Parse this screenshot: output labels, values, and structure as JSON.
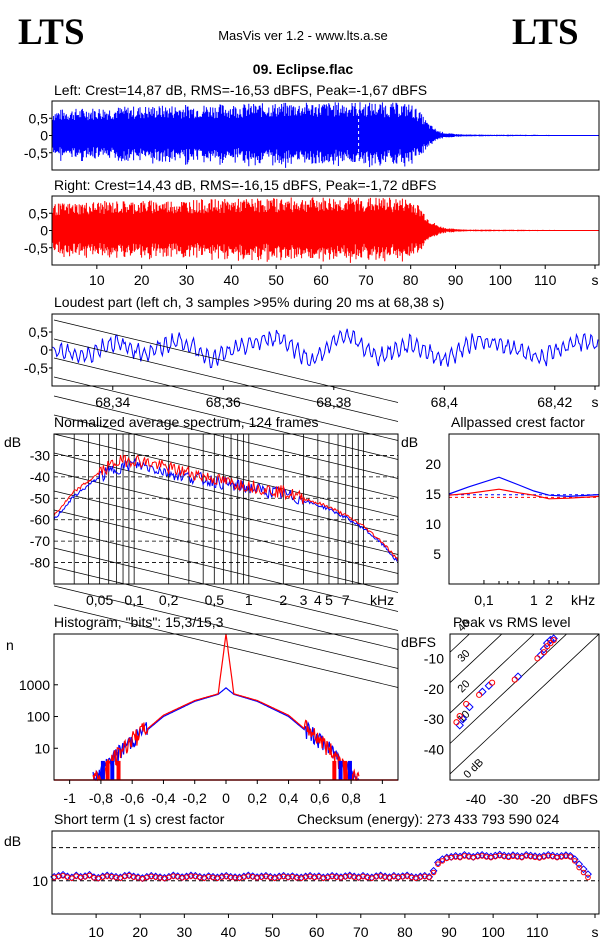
{
  "header": {
    "logo_left": "LTS",
    "logo_right": "LTS",
    "app_info": "MasVis ver 1.2 - www.lts.a.se",
    "track_title": "09. Eclipse.flac"
  },
  "colors": {
    "left": "#0000ff",
    "right": "#ff0000",
    "grid": "#000000"
  },
  "chart_data": [
    {
      "id": "left_waveform",
      "type": "area",
      "title": "Left: Crest=14,87 dB, RMS=-16,53 dBFS, Peak=-1,67 dBFS",
      "y_ticks": [
        "0,5",
        "0",
        "-0,5"
      ],
      "ylim": [
        -1,
        1
      ],
      "xlim": [
        0,
        122
      ],
      "envelope": [
        [
          0,
          0.75
        ],
        [
          10,
          0.82
        ],
        [
          20,
          0.86
        ],
        [
          30,
          0.9
        ],
        [
          40,
          0.92
        ],
        [
          50,
          0.95
        ],
        [
          60,
          0.97
        ],
        [
          68,
          0.98
        ],
        [
          75,
          0.96
        ],
        [
          80,
          0.94
        ],
        [
          82,
          0.7
        ],
        [
          84,
          0.35
        ],
        [
          86,
          0.15
        ],
        [
          88,
          0.07
        ],
        [
          92,
          0.03
        ],
        [
          122,
          0.01
        ]
      ],
      "marker_x": 68.38
    },
    {
      "id": "right_waveform",
      "type": "area",
      "title": "Right: Crest=14,43 dB, RMS=-16,15 dBFS, Peak=-1,72 dBFS",
      "y_ticks": [
        "0,5",
        "0",
        "-0,5"
      ],
      "ylim": [
        -1,
        1
      ],
      "xlim": [
        0,
        122
      ],
      "x_ticks": [
        "10",
        "20",
        "30",
        "40",
        "50",
        "60",
        "70",
        "80",
        "90",
        "100",
        "110",
        "s"
      ],
      "envelope": [
        [
          0,
          0.78
        ],
        [
          10,
          0.85
        ],
        [
          20,
          0.88
        ],
        [
          30,
          0.9
        ],
        [
          40,
          0.92
        ],
        [
          50,
          0.95
        ],
        [
          60,
          0.97
        ],
        [
          68,
          0.97
        ],
        [
          75,
          0.96
        ],
        [
          80,
          0.94
        ],
        [
          82,
          0.72
        ],
        [
          84,
          0.35
        ],
        [
          86,
          0.15
        ],
        [
          88,
          0.07
        ],
        [
          92,
          0.03
        ],
        [
          122,
          0.01
        ]
      ]
    },
    {
      "id": "loudest_part",
      "type": "line",
      "title": "Loudest part (left  ch, 3 samples >95% during 20 ms at 68,38 s)",
      "y_ticks": [
        "0,5",
        "0",
        "-0,5"
      ],
      "ylim": [
        -1,
        1
      ],
      "xlim": [
        68.329,
        68.428
      ],
      "x_ticks": [
        "68,34",
        "68,36",
        "68,38",
        "68,4",
        "68,42",
        "s"
      ],
      "x_tick_values": [
        68.34,
        68.36,
        68.38,
        68.4,
        68.42
      ],
      "wave": [
        [
          68.329,
          0.02
        ],
        [
          68.335,
          -0.18
        ],
        [
          68.34,
          0.22
        ],
        [
          68.346,
          -0.1
        ],
        [
          68.352,
          0.28
        ],
        [
          68.358,
          -0.25
        ],
        [
          68.364,
          0.12
        ],
        [
          68.37,
          0.38
        ],
        [
          68.376,
          -0.32
        ],
        [
          68.382,
          0.45
        ],
        [
          68.388,
          -0.2
        ],
        [
          68.394,
          0.18
        ],
        [
          68.4,
          -0.28
        ],
        [
          68.406,
          0.3
        ],
        [
          68.412,
          0.05
        ],
        [
          68.418,
          -0.22
        ],
        [
          68.424,
          0.26
        ],
        [
          68.428,
          0.1
        ]
      ]
    },
    {
      "id": "avg_spectrum",
      "type": "line",
      "title": "Normalized average spectrum, 124 frames",
      "ylabel": "dB",
      "xlabel": "kHz",
      "y_ticks": [
        "-30",
        "-40",
        "-50",
        "-60",
        "-70",
        "-80"
      ],
      "y_tick_values": [
        -30,
        -40,
        -50,
        -60,
        -70,
        -80
      ],
      "ylim": [
        -90,
        -20
      ],
      "xlim_khz": [
        0.02,
        20
      ],
      "x_ticks": [
        "0,05",
        "0,1",
        "0,2",
        "0,5",
        "1",
        "2",
        "3",
        "4",
        "5",
        "7"
      ],
      "x_tick_values": [
        0.05,
        0.1,
        0.2,
        0.5,
        1,
        2,
        3,
        4,
        5,
        7
      ],
      "series": [
        {
          "name": "left",
          "points": [
            [
              0.02,
              -60
            ],
            [
              0.03,
              -49
            ],
            [
              0.05,
              -40
            ],
            [
              0.07,
              -36
            ],
            [
              0.1,
              -34
            ],
            [
              0.15,
              -36
            ],
            [
              0.2,
              -38
            ],
            [
              0.3,
              -40
            ],
            [
              0.5,
              -42
            ],
            [
              0.7,
              -44
            ],
            [
              1,
              -45
            ],
            [
              1.5,
              -47
            ],
            [
              2,
              -48
            ],
            [
              3,
              -51
            ],
            [
              5,
              -55
            ],
            [
              7,
              -59
            ],
            [
              10,
              -64
            ],
            [
              15,
              -72
            ],
            [
              20,
              -80
            ]
          ]
        },
        {
          "name": "right",
          "points": [
            [
              0.02,
              -58
            ],
            [
              0.03,
              -47
            ],
            [
              0.05,
              -38
            ],
            [
              0.07,
              -33
            ],
            [
              0.1,
              -32
            ],
            [
              0.15,
              -34
            ],
            [
              0.2,
              -36
            ],
            [
              0.3,
              -38
            ],
            [
              0.5,
              -41
            ],
            [
              0.7,
              -43
            ],
            [
              1,
              -44
            ],
            [
              1.5,
              -46
            ],
            [
              2,
              -47
            ],
            [
              3,
              -50
            ],
            [
              5,
              -54
            ],
            [
              7,
              -58
            ],
            [
              10,
              -63
            ],
            [
              15,
              -71
            ],
            [
              20,
              -79
            ]
          ]
        }
      ]
    },
    {
      "id": "allpassed_crest",
      "type": "line",
      "title": "Allpassed crest factor",
      "ylabel": "dB",
      "xlabel": "kHz",
      "y_ticks": [
        "20",
        "15",
        "10",
        "5"
      ],
      "y_tick_values": [
        20,
        15,
        10,
        5
      ],
      "ylim": [
        0,
        25
      ],
      "x_ticks": [
        "0,1",
        "1",
        "2"
      ],
      "x_tick_values": [
        0.1,
        1,
        2
      ],
      "xlim_khz": [
        0.02,
        20
      ],
      "reference_lines": [
        14.87,
        14.43
      ],
      "series": [
        {
          "name": "left",
          "points": [
            [
              0.02,
              15
            ],
            [
              0.05,
              16.2
            ],
            [
              0.2,
              17.8
            ],
            [
              0.5,
              16.5
            ],
            [
              1,
              15.5
            ],
            [
              2,
              14.8
            ],
            [
              5,
              14.6
            ],
            [
              20,
              14.9
            ]
          ]
        },
        {
          "name": "right",
          "points": [
            [
              0.02,
              14.8
            ],
            [
              0.05,
              15.1
            ],
            [
              0.2,
              15.8
            ],
            [
              0.5,
              15.2
            ],
            [
              1,
              14.8
            ],
            [
              2,
              14.2
            ],
            [
              5,
              14.3
            ],
            [
              20,
              14.6
            ]
          ]
        }
      ]
    },
    {
      "id": "histogram",
      "type": "line",
      "title": "Histogram, \"bits\": 15,3/15,3",
      "ylabel": "n",
      "y_ticks": [
        "1000",
        "100",
        "10"
      ],
      "y_tick_values": [
        1000,
        100,
        10
      ],
      "ylog": true,
      "x_ticks": [
        "-1",
        "-0,8",
        "-0,6",
        "-0,4",
        "-0,2",
        "0",
        "0,2",
        "0,4",
        "0,6",
        "0,8",
        "1"
      ],
      "x_tick_values": [
        -1,
        -0.8,
        -0.6,
        -0.4,
        -0.2,
        0,
        0.2,
        0.4,
        0.6,
        0.8,
        1
      ],
      "xlim": [
        -1.1,
        1.1
      ],
      "series": [
        {
          "name": "left",
          "points": [
            [
              -0.82,
              1
            ],
            [
              -0.75,
              3
            ],
            [
              -0.6,
              15
            ],
            [
              -0.4,
              100
            ],
            [
              -0.2,
              300
            ],
            [
              -0.05,
              500
            ],
            [
              0,
              800
            ],
            [
              0.05,
              500
            ],
            [
              0.2,
              300
            ],
            [
              0.4,
              100
            ],
            [
              0.6,
              15
            ],
            [
              0.75,
              3
            ],
            [
              0.82,
              1
            ]
          ]
        },
        {
          "name": "right",
          "points": [
            [
              -0.8,
              1
            ],
            [
              -0.74,
              3
            ],
            [
              -0.6,
              16
            ],
            [
              -0.4,
              110
            ],
            [
              -0.2,
              320
            ],
            [
              -0.05,
              520
            ],
            [
              0,
              40000
            ],
            [
              0.05,
              520
            ],
            [
              0.2,
              320
            ],
            [
              0.4,
              110
            ],
            [
              0.6,
              16
            ],
            [
              0.74,
              3
            ],
            [
              0.8,
              1
            ]
          ]
        }
      ]
    },
    {
      "id": "peak_vs_rms",
      "type": "scatter",
      "title": "Peak vs RMS level",
      "ylabel": "dBFS",
      "xlabel": "dBFS",
      "y_ticks": [
        "-10",
        "-20",
        "-30",
        "-40"
      ],
      "y_tick_values": [
        -10,
        -20,
        -30,
        -40
      ],
      "x_ticks": [
        "-40",
        "-30",
        "-20"
      ],
      "x_tick_values": [
        -40,
        -30,
        -20
      ],
      "xlim": [
        -48,
        -2
      ],
      "ylim": [
        -50,
        -2
      ],
      "diagonal_labels": [
        "40",
        "30",
        "20",
        "10",
        "0 dB"
      ],
      "series": [
        {
          "name": "left",
          "points": [
            [
              -45,
              -32
            ],
            [
              -44,
              -30
            ],
            [
              -42,
              -26
            ],
            [
              -38,
              -21
            ],
            [
              -36,
              -19
            ],
            [
              -27,
              -16
            ],
            [
              -20,
              -9
            ],
            [
              -19,
              -7
            ],
            [
              -18,
              -5
            ],
            [
              -17,
              -4
            ],
            [
              -16,
              -3.5
            ]
          ]
        },
        {
          "name": "right",
          "points": [
            [
              -46,
              -31
            ],
            [
              -45,
              -29
            ],
            [
              -43,
              -25
            ],
            [
              -39,
              -22
            ],
            [
              -35,
              -18
            ],
            [
              -28,
              -17
            ],
            [
              -21,
              -10
            ],
            [
              -19,
              -8
            ],
            [
              -18,
              -6
            ],
            [
              -17,
              -5
            ],
            [
              -16,
              -4
            ]
          ]
        }
      ]
    },
    {
      "id": "short_term_crest",
      "type": "scatter",
      "title": "Short term (1 s) crest factor",
      "checksum": "Checksum (energy):   273 433 793 590 024",
      "ylabel": "dB",
      "y_ticks": [
        "10"
      ],
      "y_tick_values": [
        10
      ],
      "ylim": [
        0,
        25
      ],
      "xlim": [
        0,
        124
      ],
      "x_ticks": [
        "10",
        "20",
        "30",
        "40",
        "50",
        "60",
        "70",
        "80",
        "90",
        "100",
        "110",
        "s"
      ],
      "x_tick_values": [
        10,
        20,
        30,
        40,
        50,
        60,
        70,
        80,
        90,
        100,
        110
      ],
      "dashed_lines": [
        10,
        20
      ],
      "series": [
        {
          "name": "left",
          "values": [
            11.2,
            11.5,
            11.8,
            11.3,
            11,
            11.6,
            11.2,
            11.4,
            11.8,
            11.1,
            10.9,
            11.3,
            11.6,
            11.4,
            11.2,
            11,
            11.5,
            11.7,
            11.3,
            11.1,
            10.8,
            11.2,
            11.5,
            11.3,
            11.1,
            10.9,
            11.2,
            11.6,
            11.4,
            11.1,
            11.3,
            11.6,
            11.5,
            11.2,
            11,
            11.4,
            11.2,
            11,
            11.3,
            11.5,
            11.2,
            11.1,
            11,
            11.3,
            11.6,
            11.4,
            11.1,
            11.3,
            11.5,
            11.2,
            11,
            11.3,
            11.5,
            11.2,
            11.4,
            11.1,
            11,
            11.3,
            11.5,
            11.2,
            11.4,
            11,
            11.2,
            11.5,
            11.3,
            11.1,
            11.4,
            11.6,
            11.3,
            11.1,
            11.5,
            11.2,
            11,
            11.4,
            11.6,
            11.3,
            11.1,
            11.5,
            11.2,
            11.4,
            11.6,
            11.2,
            11,
            11.3,
            11.5,
            11.2,
            13,
            15.5,
            16.5,
            17,
            17.2,
            17.5,
            17.3,
            17.8,
            17.5,
            17.2,
            17.6,
            17.8,
            17.5,
            17.3,
            17.6,
            17.9,
            17.6,
            17.4,
            17.7,
            17.5,
            17.3,
            17.8,
            17.6,
            17.4,
            17.2,
            17.5,
            17.8,
            17.6,
            17.3,
            17.5,
            17.7,
            17.5,
            16.5,
            15,
            13.5,
            12
          ]
        },
        {
          "name": "right",
          "values": [
            11,
            11.3,
            11.5,
            11.1,
            10.8,
            11.4,
            11,
            11.2,
            11.6,
            10.9,
            10.7,
            11.1,
            11.4,
            11.2,
            11,
            10.8,
            11.3,
            11.5,
            11.1,
            10.9,
            10.6,
            11,
            11.3,
            11.1,
            10.9,
            10.7,
            11,
            11.4,
            11.2,
            10.9,
            11.1,
            11.4,
            11.3,
            11,
            10.8,
            11.2,
            11,
            10.8,
            11.1,
            11.3,
            11,
            10.9,
            10.8,
            11.1,
            11.4,
            11.2,
            10.9,
            11.1,
            11.3,
            11,
            10.8,
            11.1,
            11.3,
            11,
            11.2,
            10.9,
            10.8,
            11.1,
            11.3,
            11,
            11.2,
            10.8,
            11,
            11.3,
            11.1,
            10.9,
            11.2,
            11.4,
            11.1,
            10.9,
            11.3,
            11,
            10.8,
            11.2,
            11.4,
            11.1,
            10.9,
            11.3,
            11,
            11.2,
            11.4,
            11,
            10.8,
            11.1,
            11.3,
            11,
            12.5,
            15,
            16,
            16.8,
            17,
            17.2,
            17,
            17.5,
            17.2,
            17,
            17.3,
            17.5,
            17.2,
            17,
            17.3,
            17.6,
            17.3,
            17.1,
            17.4,
            17.2,
            17,
            17.5,
            17.3,
            17.1,
            16.9,
            17.2,
            17.5,
            17.3,
            17,
            17.2,
            17.4,
            17.2,
            16,
            14,
            12.5,
            11
          ]
        }
      ]
    }
  ]
}
